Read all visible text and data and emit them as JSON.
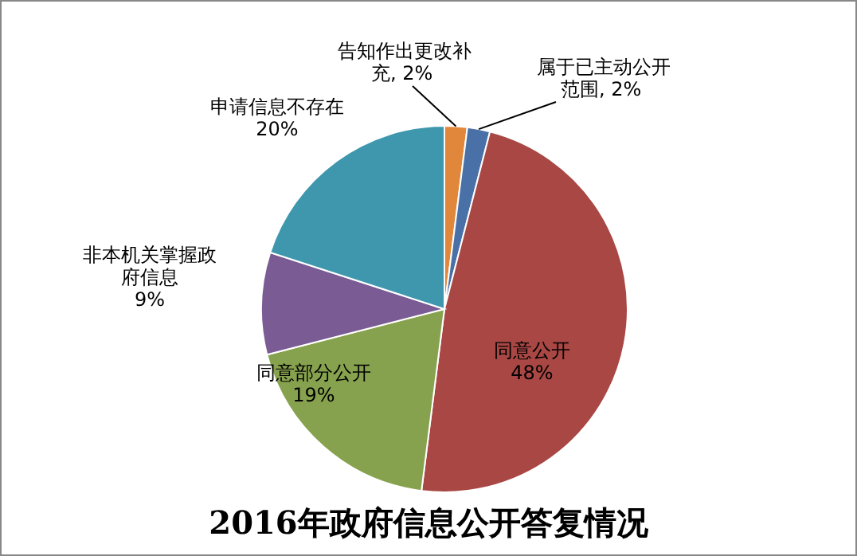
{
  "chart_data": {
    "type": "pie",
    "title": "2016年政府信息公开答复情况",
    "categories": [
      "告知作出更改补充",
      "属于已主动公开范围",
      "同意公开",
      "同意部分公开",
      "非本机关掌握政府信息",
      "申请信息不存在"
    ],
    "values": [
      2,
      2,
      48,
      19,
      9,
      20
    ],
    "colors": [
      "#e0873c",
      "#4a70a8",
      "#a84744",
      "#87a24e",
      "#7a5b94",
      "#3e97ad"
    ],
    "value_labels": [
      ", 2%",
      ", 2%",
      "48%",
      "19%",
      "9%",
      "20%"
    ]
  }
}
